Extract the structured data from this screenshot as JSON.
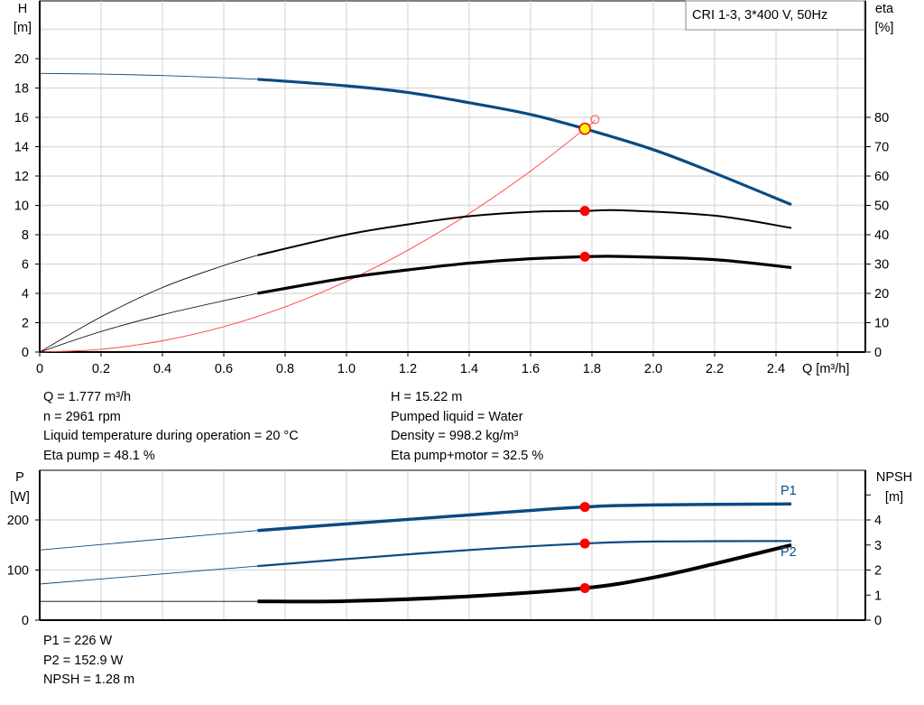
{
  "colors": {
    "head": "#0b4a82",
    "power": "#0b4a82",
    "eta": "#000000",
    "system": "#ff4040",
    "marker": "#ff0000",
    "duty": "#ffff00",
    "grid": "#d0d0d0"
  },
  "chart_data": [
    {
      "type": "line",
      "legend": "CRI 1-3, 3*400 V, 50Hz",
      "legend_position": "top-right",
      "grid": true,
      "xlabel": "Q [m³/h]",
      "xlim": [
        0,
        2.7
      ],
      "xticks": [
        "0",
        "0.2",
        "0.4",
        "0.6",
        "0.8",
        "1.0",
        "1.2",
        "1.4",
        "1.6",
        "1.8",
        "2.0",
        "2.2",
        "2.4"
      ],
      "ylabel": "H",
      "yunit": "[m]",
      "ylim": [
        0,
        20
      ],
      "yticks": [
        "0",
        "2",
        "4",
        "6",
        "8",
        "10",
        "12",
        "14",
        "16",
        "18",
        "20"
      ],
      "y2label": "eta",
      "y2unit": "[%]",
      "y2lim": [
        0,
        80
      ],
      "y2ticks": [
        "0",
        "10",
        "20",
        "30",
        "40",
        "50",
        "60",
        "70",
        "80"
      ],
      "series": [
        {
          "id": "head",
          "axis": "y",
          "x": [
            0,
            0.2,
            0.4,
            0.6,
            0.71,
            1.0,
            1.2,
            1.4,
            1.6,
            1.777,
            2.0,
            2.2,
            2.45
          ],
          "values": [
            19,
            18.95,
            18.85,
            18.7,
            18.6,
            18.15,
            17.7,
            17.0,
            16.2,
            15.22,
            13.8,
            12.2,
            10.05
          ]
        },
        {
          "id": "eta-pump",
          "axis": "y2",
          "x": [
            0,
            0.2,
            0.4,
            0.6,
            0.71,
            1.0,
            1.2,
            1.4,
            1.6,
            1.777,
            1.9,
            2.2,
            2.45
          ],
          "values": [
            0,
            12,
            22,
            29.5,
            33,
            40,
            43.5,
            46.3,
            47.8,
            48.1,
            48.3,
            46.5,
            42.3
          ]
        },
        {
          "id": "eta-pump-motor",
          "axis": "y2",
          "x": [
            0,
            0.2,
            0.4,
            0.6,
            0.71,
            1.0,
            1.2,
            1.4,
            1.6,
            1.777,
            1.9,
            2.2,
            2.45
          ],
          "values": [
            0,
            7,
            12.7,
            17.5,
            20,
            25.3,
            28,
            30.3,
            31.8,
            32.5,
            32.6,
            31.5,
            28.8
          ]
        },
        {
          "id": "system",
          "axis": "y",
          "x": [
            0,
            0.2,
            0.4,
            0.6,
            0.8,
            1.0,
            1.2,
            1.4,
            1.6,
            1.777,
            1.81
          ],
          "values": [
            0,
            0.19,
            0.77,
            1.73,
            3.08,
            4.82,
            6.94,
            9.45,
            12.34,
            15.22,
            15.8
          ]
        }
      ],
      "duty_point": {
        "x": 1.777,
        "H": 15.22,
        "eta_pump": 48.1,
        "eta_pump_motor": 32.5
      }
    },
    {
      "type": "line",
      "grid": true,
      "xlim": [
        0,
        2.7
      ],
      "ylabel": "P",
      "yunit": "[W]",
      "ylim": [
        0,
        300
      ],
      "yticks": [
        "0",
        "100",
        "200"
      ],
      "y2label": "NPSH",
      "y2unit": "[m]",
      "y2lim": [
        0,
        6
      ],
      "y2ticks": [
        "0",
        "1",
        "2",
        "3",
        "4"
      ],
      "series": [
        {
          "id": "P1",
          "name": "P1",
          "axis": "y",
          "x": [
            0,
            0.71,
            1.0,
            1.4,
            1.777,
            2.0,
            2.45
          ],
          "values": [
            140,
            179,
            192,
            210,
            226,
            230,
            232
          ]
        },
        {
          "id": "P2",
          "name": "P2",
          "axis": "y",
          "x": [
            0,
            0.71,
            1.0,
            1.4,
            1.777,
            2.0,
            2.45
          ],
          "values": [
            72,
            108,
            122,
            140,
            152.9,
            157,
            158
          ]
        },
        {
          "id": "NPSH",
          "axis": "y2",
          "x": [
            0,
            0.71,
            1.0,
            1.4,
            1.777,
            2.0,
            2.2,
            2.45
          ],
          "values": [
            0.75,
            0.75,
            0.76,
            0.95,
            1.28,
            1.7,
            2.25,
            3.0
          ]
        }
      ],
      "duty_point": {
        "x": 1.777,
        "P1": 226,
        "P2": 152.9,
        "NPSH": 1.28
      }
    }
  ],
  "info": {
    "col1": [
      "Q = 1.777 m³/h",
      "n = 2961 rpm",
      "Liquid temperature during operation = 20 °C",
      "Eta pump = 48.1 %"
    ],
    "col2": [
      "H = 15.22 m",
      "Pumped liquid = Water",
      "Density = 998.2 kg/m³",
      "Eta pump+motor = 32.5 %"
    ],
    "bottom": [
      "P1 = 226 W",
      "P2 = 152.9 W",
      "NPSH = 1.28 m"
    ]
  }
}
